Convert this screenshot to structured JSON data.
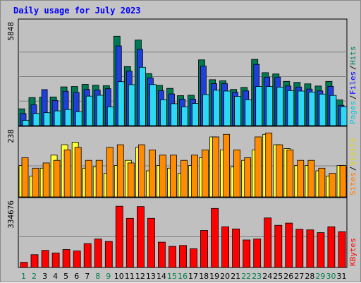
{
  "title": "Daily usage for July 2023",
  "chart_data": {
    "type": "bar",
    "categories": [
      "1",
      "2",
      "3",
      "4",
      "5",
      "6",
      "7",
      "8",
      "9",
      "10",
      "11",
      "12",
      "13",
      "14",
      "15",
      "16",
      "17",
      "18",
      "19",
      "20",
      "21",
      "22",
      "23",
      "24",
      "25",
      "26",
      "27",
      "28",
      "29",
      "30",
      "31"
    ],
    "weekend_days": [
      "1",
      "2",
      "8",
      "9",
      "15",
      "16",
      "22",
      "23",
      "29",
      "30"
    ],
    "panels": [
      {
        "id": "hits",
        "max_label": "5848",
        "ylim": [
          0,
          5848
        ],
        "axis_labels": [
          "Pages",
          "Files",
          "Hits"
        ],
        "series": [
          {
            "name": "Hits",
            "color": "#007a55",
            "values": [
              1000,
              1670,
              1700,
              1710,
              2310,
              2330,
              2460,
              2410,
              2380,
              5330,
              3520,
              5100,
              3100,
              2400,
              2220,
              1790,
              1810,
              3920,
              2740,
              2670,
              2160,
              2280,
              3950,
              3160,
              3080,
              2640,
              2580,
              2490,
              2360,
              2640,
              1530
            ]
          },
          {
            "name": "Files",
            "color": "#1f3fdb",
            "values": [
              720,
              1240,
              2150,
              1500,
              2050,
              1980,
              2160,
              2120,
              2200,
              4750,
              3250,
              4550,
              2840,
              2080,
              1890,
              1580,
              1580,
              3550,
              2500,
              2500,
              1990,
              2070,
              3650,
              2890,
              2890,
              2360,
              2300,
              2180,
              2070,
              2340,
              1210
            ]
          },
          {
            "name": "Pages",
            "color": "#2dd8f4",
            "values": [
              310,
              720,
              770,
              880,
              960,
              830,
              1760,
              1810,
              1120,
              2620,
              2440,
              3480,
              2450,
              1540,
              1310,
              1120,
              1320,
              1850,
              2110,
              2060,
              1740,
              1540,
              2330,
              2330,
              2290,
              2090,
              2060,
              2000,
              1880,
              1800,
              1130
            ]
          }
        ]
      },
      {
        "id": "visits",
        "max_label": "238",
        "ylim": [
          0,
          238
        ],
        "axis_labels": [
          "Sites",
          "Visits"
        ],
        "series": [
          {
            "name": "Visits",
            "color": "#ffff33",
            "values": [
              120,
              80,
              110,
              160,
              200,
              210,
              110,
              115,
              90,
              120,
              140,
              190,
              100,
              120,
              110,
              90,
              120,
              150,
              230,
              180,
              115,
              140,
              180,
              240,
              200,
              185,
              120,
              120,
              100,
              80,
              120
            ]
          },
          {
            "name": "Sites",
            "color": "#ff8c00",
            "values": [
              150,
              110,
              130,
              140,
              180,
              190,
              140,
              140,
              190,
              200,
              130,
              200,
              180,
              160,
              160,
              140,
              160,
              180,
              230,
              240,
              180,
              150,
              230,
              245,
              200,
              180,
              140,
              140,
              110,
              90,
              120
            ]
          }
        ]
      },
      {
        "id": "kbytes",
        "max_label": "334676",
        "ylim": [
          0,
          334676
        ],
        "axis_labels": [
          "KBytes"
        ],
        "series": [
          {
            "name": "KBytes",
            "color": "#ff0000",
            "values": [
              28000,
              70000,
              93000,
              79000,
              98000,
              90000,
              130000,
              155000,
              142000,
              334000,
              268000,
              332000,
              268000,
              138000,
              115000,
              120000,
              102000,
              202000,
              322000,
              222000,
              210000,
              150000,
              155000,
              270000,
              230000,
              242000,
              208000,
              205000,
              190000,
              222000,
              195000
            ]
          }
        ]
      }
    ]
  }
}
